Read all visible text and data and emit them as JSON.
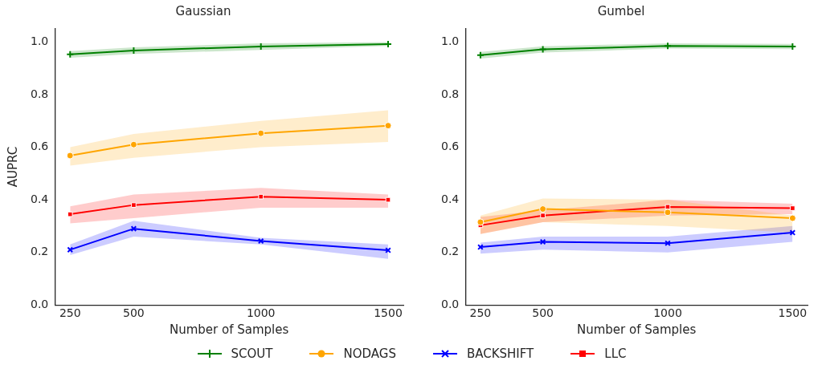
{
  "chart_data": [
    {
      "type": "line",
      "title": "Gaussian",
      "xlabel": "Number of Samples",
      "ylabel": "AUPRC",
      "x": [
        250,
        500,
        1000,
        1500
      ],
      "xlim": [
        190,
        1560
      ],
      "xticks": [
        250,
        500,
        1000,
        1500
      ],
      "ylim": [
        0,
        1.05
      ],
      "yticks": [
        {
          "value": 0,
          "label": "0.0"
        },
        {
          "value": 0.2,
          "label": "0.2"
        },
        {
          "value": 0.4,
          "label": "0.4"
        },
        {
          "value": 0.6,
          "label": "0.6"
        },
        {
          "value": 0.8,
          "label": "0.8"
        },
        {
          "value": 1,
          "label": "1.0"
        }
      ],
      "grid": false,
      "legend": "bottom",
      "line_style": "solid",
      "series": [
        {
          "name": "SCOUT",
          "color": "#008000",
          "marker": "cross",
          "values": [
            0.953,
            0.968,
            0.983,
            0.992
          ],
          "lower": [
            0.94,
            0.955,
            0.97,
            0.985
          ],
          "upper": [
            0.965,
            0.98,
            0.995,
            1.0
          ]
        },
        {
          "name": "NODAGS",
          "color": "#ffa500",
          "marker": "circle",
          "values": [
            0.568,
            0.61,
            0.653,
            0.682
          ],
          "lower": [
            0.53,
            0.56,
            0.6,
            0.62
          ],
          "upper": [
            0.6,
            0.65,
            0.7,
            0.74
          ]
        },
        {
          "name": "BACKSHIFT",
          "color": "#0000ff",
          "marker": "x",
          "values": [
            0.21,
            0.29,
            0.243,
            0.208
          ],
          "lower": [
            0.19,
            0.26,
            0.23,
            0.175
          ],
          "upper": [
            0.23,
            0.32,
            0.255,
            0.23
          ]
        },
        {
          "name": "LLC",
          "color": "#ff0000",
          "marker": "square",
          "values": [
            0.345,
            0.38,
            0.412,
            0.4
          ],
          "lower": [
            0.31,
            0.33,
            0.37,
            0.37
          ],
          "upper": [
            0.375,
            0.42,
            0.445,
            0.42
          ]
        }
      ]
    },
    {
      "type": "line",
      "title": "Gumbel",
      "xlabel": "Number of Samples",
      "x": [
        250,
        500,
        1000,
        1500
      ],
      "xlim": [
        190,
        1560
      ],
      "xticks": [
        250,
        500,
        1000,
        1500
      ],
      "ylim": [
        0,
        1.05
      ],
      "yticks": [
        {
          "value": 0,
          "label": "0.0"
        },
        {
          "value": 0.2,
          "label": "0.2"
        },
        {
          "value": 0.4,
          "label": "0.4"
        },
        {
          "value": 0.6,
          "label": "0.6"
        },
        {
          "value": 0.8,
          "label": "0.8"
        },
        {
          "value": 1,
          "label": "1.0"
        }
      ],
      "grid": false,
      "line_style": "solid",
      "series": [
        {
          "color": "#008000",
          "marker": "cross",
          "values": [
            0.95,
            0.972,
            0.985,
            0.983
          ],
          "lower": [
            0.937,
            0.96,
            0.975,
            0.973
          ],
          "upper": [
            0.962,
            0.984,
            0.995,
            0.993
          ]
        },
        {
          "color": "#ffa500",
          "marker": "circle",
          "values": [
            0.315,
            0.365,
            0.352,
            0.33
          ],
          "lower": [
            0.27,
            0.315,
            0.3,
            0.275
          ],
          "upper": [
            0.34,
            0.405,
            0.4,
            0.34
          ]
        },
        {
          "color": "#0000ff",
          "marker": "x",
          "values": [
            0.22,
            0.24,
            0.235,
            0.275
          ],
          "lower": [
            0.195,
            0.21,
            0.2,
            0.24
          ],
          "upper": [
            0.237,
            0.26,
            0.26,
            0.3
          ]
        },
        {
          "color": "#ff0000",
          "marker": "square",
          "values": [
            0.303,
            0.34,
            0.373,
            0.368
          ],
          "lower": [
            0.27,
            0.315,
            0.34,
            0.345
          ],
          "upper": [
            0.335,
            0.36,
            0.4,
            0.385
          ]
        }
      ]
    }
  ]
}
